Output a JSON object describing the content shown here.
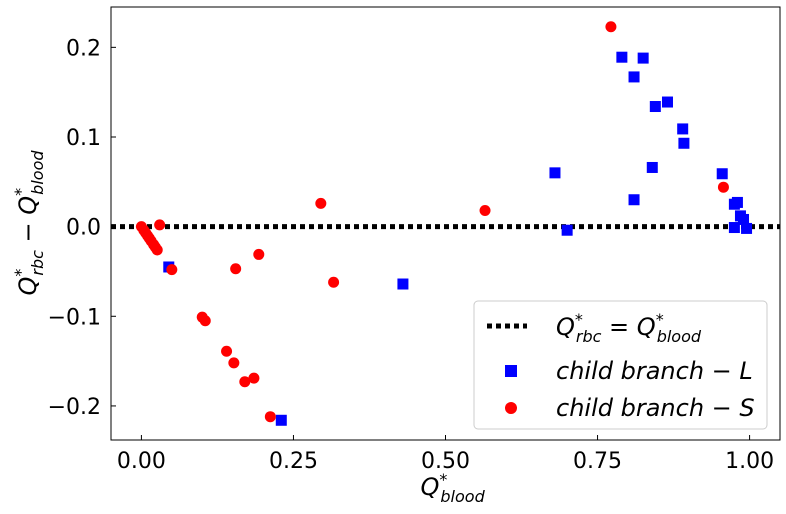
{
  "chart_data": {
    "type": "scatter",
    "xlabel": {
      "base": "Q",
      "sup": "*",
      "sub": "blood"
    },
    "ylabel": {
      "parts": [
        {
          "base": "Q",
          "sup": "*",
          "sub": "rbc"
        },
        {
          "op": "−"
        },
        {
          "base": "Q",
          "sup": "*",
          "sub": "blood"
        }
      ]
    },
    "xlim": [
      -0.05,
      1.05
    ],
    "ylim": [
      -0.238,
      0.245
    ],
    "xticks": [
      0.0,
      0.25,
      0.5,
      0.75,
      1.0
    ],
    "xtick_labels": [
      "0.00",
      "0.25",
      "0.50",
      "0.75",
      "1.00"
    ],
    "yticks": [
      -0.2,
      -0.1,
      0.0,
      0.1,
      0.2
    ],
    "ytick_labels": [
      "−0.2",
      "−0.1",
      "0.0",
      "0.1",
      "0.2"
    ],
    "grid": false,
    "legend_position": "lower-right",
    "reference_line": {
      "y": 0.0,
      "style": "dotted",
      "color": "#000000",
      "legend": {
        "lhs": {
          "base": "Q",
          "sup": "*",
          "sub": "rbc"
        },
        "op": "=",
        "rhs": {
          "base": "Q",
          "sup": "*",
          "sub": "blood"
        }
      }
    },
    "series": [
      {
        "name": "child branch − L",
        "marker": "square",
        "color": "#0000ff",
        "points": [
          [
            0.045,
            -0.045
          ],
          [
            0.23,
            -0.216
          ],
          [
            0.43,
            -0.064
          ],
          [
            0.68,
            0.06
          ],
          [
            0.7,
            -0.004
          ],
          [
            0.79,
            0.189
          ],
          [
            0.81,
            0.167
          ],
          [
            0.81,
            0.03
          ],
          [
            0.825,
            0.188
          ],
          [
            0.84,
            0.066
          ],
          [
            0.845,
            0.134
          ],
          [
            0.865,
            0.139
          ],
          [
            0.89,
            0.109
          ],
          [
            0.892,
            0.093
          ],
          [
            0.955,
            0.059
          ],
          [
            0.975,
            0.025
          ],
          [
            0.98,
            0.027
          ],
          [
            0.975,
            -0.001
          ],
          [
            0.985,
            0.012
          ],
          [
            0.99,
            0.008
          ],
          [
            0.995,
            -0.002
          ]
        ]
      },
      {
        "name": "child branch − S",
        "marker": "circle",
        "color": "#ff0000",
        "points": [
          [
            0.0,
            0.0
          ],
          [
            0.004,
            -0.004
          ],
          [
            0.007,
            -0.007
          ],
          [
            0.01,
            -0.01
          ],
          [
            0.013,
            -0.013
          ],
          [
            0.016,
            -0.016
          ],
          [
            0.02,
            -0.02
          ],
          [
            0.023,
            -0.023
          ],
          [
            0.026,
            -0.026
          ],
          [
            0.03,
            0.002
          ],
          [
            0.05,
            -0.048
          ],
          [
            0.1,
            -0.101
          ],
          [
            0.105,
            -0.105
          ],
          [
            0.14,
            -0.139
          ],
          [
            0.152,
            -0.152
          ],
          [
            0.155,
            -0.047
          ],
          [
            0.17,
            -0.173
          ],
          [
            0.185,
            -0.169
          ],
          [
            0.193,
            -0.031
          ],
          [
            0.212,
            -0.212
          ],
          [
            0.295,
            0.026
          ],
          [
            0.316,
            -0.062
          ],
          [
            0.565,
            0.018
          ],
          [
            0.772,
            0.223
          ],
          [
            0.957,
            0.044
          ]
        ]
      }
    ]
  }
}
